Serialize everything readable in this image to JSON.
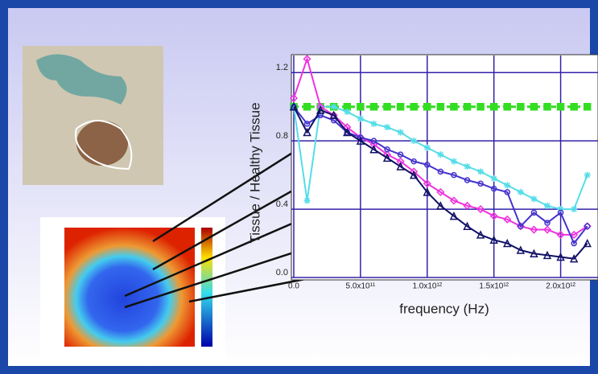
{
  "chart_data": {
    "type": "line",
    "xlabel": "frequency  (Hz)",
    "ylabel": "Tissue / Healthy Tissue",
    "xlim": [
      0,
      2280000000000.0
    ],
    "ylim": [
      0,
      1.3
    ],
    "xticks": [
      {
        "value": 0,
        "label": "0.0"
      },
      {
        "value": 500000000000.0,
        "label": "5.0x10¹¹"
      },
      {
        "value": 1000000000000.0,
        "label": "1.0x10¹²"
      },
      {
        "value": 1500000000000.0,
        "label": "1.5x10¹²"
      },
      {
        "value": 2000000000000.0,
        "label": "2.0x10¹²"
      }
    ],
    "yticks": [
      {
        "value": 0,
        "label": "0.0"
      },
      0.4,
      0.8,
      1.2
    ],
    "grid": true,
    "x": [
      0,
      100000000000.0,
      200000000000.0,
      300000000000.0,
      400000000000.0,
      500000000000.0,
      600000000000.0,
      700000000000.0,
      800000000000.0,
      900000000000.0,
      1000000000000.0,
      1100000000000.0,
      1200000000000.0,
      1300000000000.0,
      1400000000000.0,
      1500000000000.0,
      1600000000000.0,
      1700000000000.0,
      1800000000000.0,
      1900000000000.0,
      2000000000000.0,
      2100000000000.0,
      2200000000000.0
    ],
    "series": [
      {
        "color": "#33dd22",
        "marker": "square",
        "values": [
          1,
          1,
          1,
          1,
          1,
          1,
          1,
          1,
          1,
          1,
          1,
          1,
          1,
          1,
          1,
          1,
          1,
          1,
          1,
          1,
          1,
          1,
          1
        ]
      },
      {
        "color": "#55dde8",
        "marker": "star",
        "values": [
          1.0,
          0.45,
          1.0,
          1.0,
          0.97,
          0.93,
          0.9,
          0.88,
          0.85,
          0.8,
          0.76,
          0.72,
          0.68,
          0.65,
          0.62,
          0.58,
          0.54,
          0.5,
          0.46,
          0.42,
          0.4,
          0.4,
          0.6
        ]
      },
      {
        "color": "#ee33dd",
        "marker": "diamond",
        "values": [
          1.05,
          1.28,
          1.0,
          0.95,
          0.88,
          0.82,
          0.78,
          0.72,
          0.68,
          0.62,
          0.55,
          0.5,
          0.45,
          0.42,
          0.4,
          0.36,
          0.34,
          0.3,
          0.28,
          0.28,
          0.25,
          0.25,
          0.3
        ]
      },
      {
        "color": "#4433cc",
        "marker": "circle",
        "values": [
          1.0,
          0.9,
          0.95,
          0.92,
          0.85,
          0.82,
          0.8,
          0.75,
          0.72,
          0.68,
          0.66,
          0.62,
          0.6,
          0.57,
          0.55,
          0.52,
          0.5,
          0.3,
          0.38,
          0.32,
          0.38,
          0.2,
          0.3
        ]
      },
      {
        "color": "#111166",
        "marker": "triangle",
        "values": [
          1.0,
          0.85,
          0.98,
          0.95,
          0.85,
          0.8,
          0.75,
          0.7,
          0.65,
          0.6,
          0.5,
          0.42,
          0.36,
          0.3,
          0.25,
          0.22,
          0.2,
          0.16,
          0.14,
          0.13,
          0.12,
          0.11,
          0.2
        ]
      }
    ]
  }
}
